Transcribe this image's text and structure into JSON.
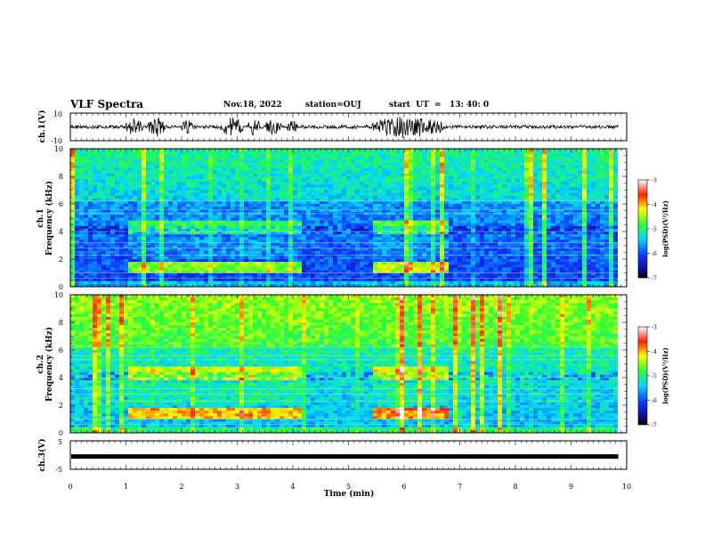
{
  "header": {
    "title": "VLF Spectra",
    "date": "Nov.18, 2022",
    "station": "station=OUJ",
    "start": "start  UT  =   13: 40: 0"
  },
  "chart_data": [
    {
      "type": "line",
      "panel": "waveform-ch1",
      "ylabel": "ch.1(V)",
      "ylim": [
        -10,
        10
      ],
      "yticks": [
        "10",
        "-10"
      ],
      "bursts_min": [
        [
          1.0,
          1.3,
          6
        ],
        [
          1.4,
          1.7,
          7
        ],
        [
          2.0,
          2.2,
          5
        ],
        [
          2.7,
          3.1,
          7
        ],
        [
          3.2,
          3.4,
          6
        ],
        [
          3.5,
          3.8,
          6
        ],
        [
          3.9,
          4.1,
          5
        ],
        [
          5.4,
          6.7,
          8
        ]
      ]
    },
    {
      "type": "heatmap",
      "panel": "spectrogram-ch1",
      "ylabel": "ch.1\nFrequency  (kHz)",
      "ylim": [
        0,
        10
      ],
      "yticks": [
        "0",
        "2",
        "4",
        "6",
        "8",
        "10"
      ],
      "colorbar": {
        "label": "log(PSD)(V²/Hz)",
        "ticks": [
          "-3",
          "-4",
          "-5",
          "-6",
          "-7"
        ],
        "range": [
          -7,
          -3
        ]
      }
    },
    {
      "type": "heatmap",
      "panel": "spectrogram-ch2",
      "ylabel": "ch.2\nFrequency  (kHz)",
      "ylim": [
        0,
        10
      ],
      "yticks": [
        "0",
        "2",
        "4",
        "6",
        "8",
        "10"
      ],
      "colorbar": {
        "label": "log(PSD)(V²/Hz)",
        "ticks": [
          "-3",
          "-4",
          "-5",
          "-6",
          "-7"
        ],
        "range": [
          -7,
          -3
        ]
      }
    },
    {
      "type": "line",
      "panel": "waveform-ch3",
      "ylabel": "ch.3(V)",
      "ylim": [
        -5,
        5
      ],
      "yticks": [
        "5",
        "-5"
      ],
      "level": -0.5
    }
  ],
  "xaxis": {
    "xlabel": "Time  (min)",
    "xlim": [
      0,
      10
    ],
    "ticks": [
      "0",
      "1",
      "2",
      "3",
      "4",
      "5",
      "6",
      "7",
      "8",
      "9",
      "10"
    ],
    "data_end_min": 9.85
  }
}
